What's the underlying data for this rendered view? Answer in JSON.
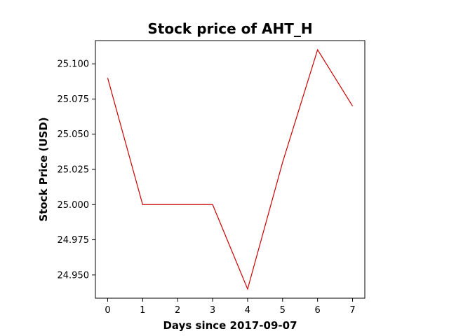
{
  "chart_data": {
    "type": "line",
    "title": "Stock price of AHT_H",
    "xlabel": "Days since 2017-09-07",
    "ylabel": "Stock Price (USD)",
    "x": [
      0,
      1,
      2,
      3,
      4,
      5,
      6,
      7
    ],
    "series": [
      {
        "values": [
          25.09,
          25.0,
          25.0,
          25.0,
          24.94,
          25.03,
          25.11,
          25.07
        ],
        "color": "#cc0000"
      }
    ],
    "xlim": [
      -0.35,
      7.35
    ],
    "ylim": [
      24.9335,
      25.1165
    ],
    "xticks": [
      0,
      1,
      2,
      3,
      4,
      5,
      6,
      7
    ],
    "yticks": [
      24.95,
      24.975,
      25.0,
      25.025,
      25.05,
      25.075,
      25.1
    ],
    "ytick_labels": [
      "24.950",
      "24.975",
      "25.000",
      "25.025",
      "25.050",
      "25.075",
      "25.100"
    ],
    "grid": false,
    "legend": "none"
  }
}
